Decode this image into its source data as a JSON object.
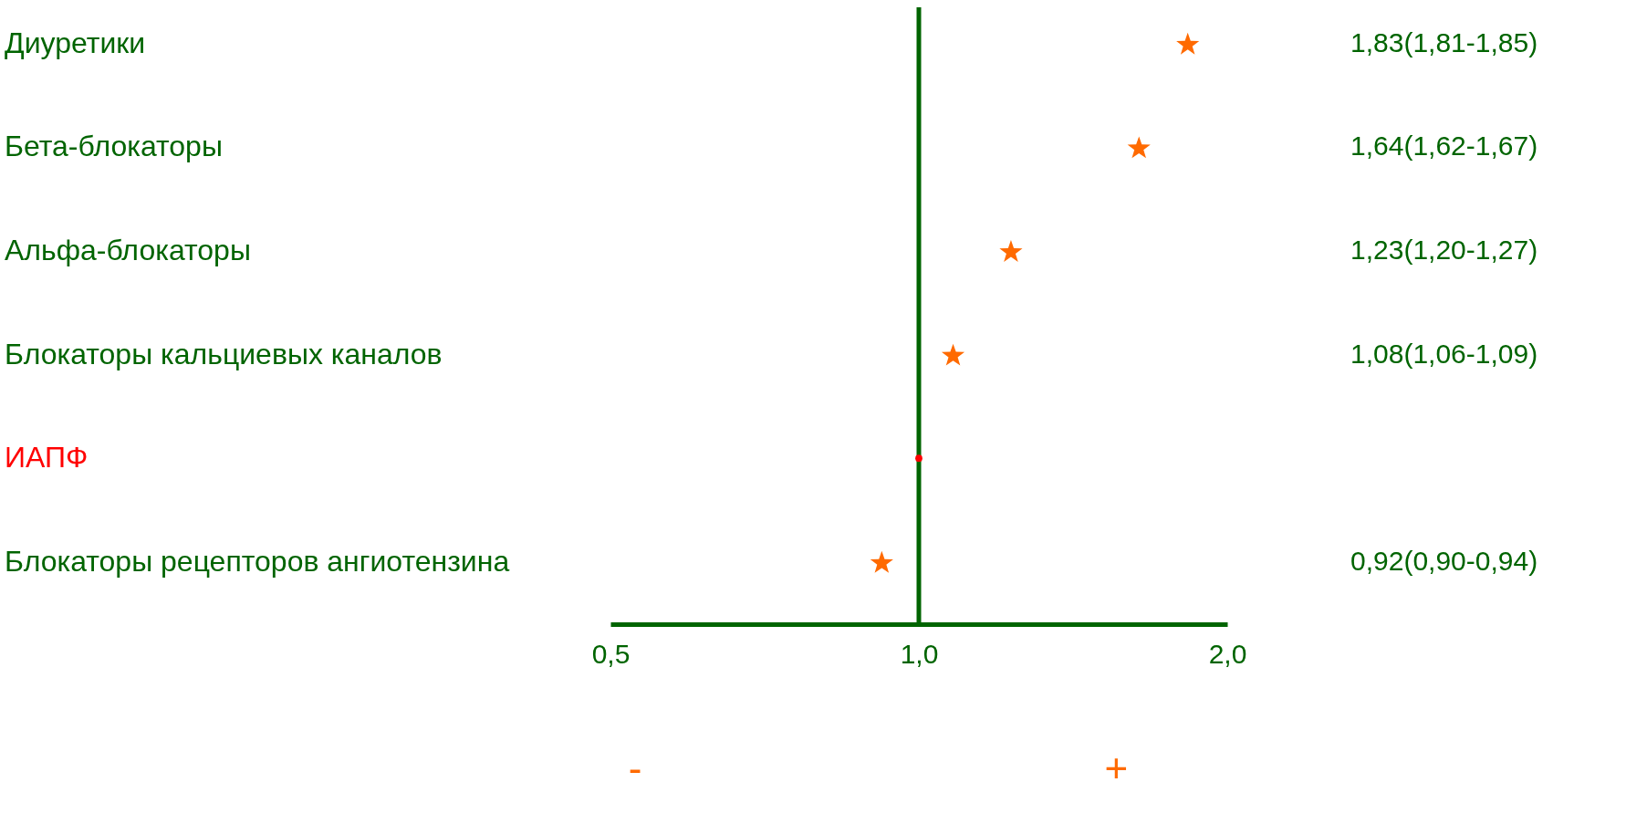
{
  "chart_data": {
    "type": "scatter",
    "orientation": "horizontal",
    "log": "x",
    "grid": false,
    "categories": [
      "Диуретики",
      "Бета-блокаторы",
      "Альфа-блокаторы",
      "Блокаторы  кальциевых каналов",
      "ИАПФ",
      "Блокаторы рецепторов ангиотензина"
    ],
    "series": [
      {
        "color": "#ff6a00",
        "marker": "star",
        "values": [
          1.83,
          1.64,
          1.23,
          1.08,
          null,
          0.92
        ],
        "value_labels": [
          "1,83(1,81-1,85)",
          "1,64(1,62-1,67)",
          "1,23(1,20-1,27)",
          "1,08(1,06-1,09)",
          null,
          "0,92(0,90-0,94)"
        ]
      },
      {
        "color": "#ff0000",
        "marker": "circle",
        "values": [
          null,
          null,
          null,
          null,
          1.0,
          null
        ]
      }
    ],
    "xlim": [
      0.5,
      2.0
    ],
    "xticks": [
      {
        "value": 0.5,
        "label": "0,5"
      },
      {
        "value": 1.0,
        "label": "1,0"
      },
      {
        "value": 2.0,
        "label": "2,0"
      }
    ],
    "ref_lines": [
      {
        "axis": "x",
        "value": 1.0,
        "color": "#006400"
      }
    ],
    "annotations": [
      "-",
      "+"
    ]
  }
}
